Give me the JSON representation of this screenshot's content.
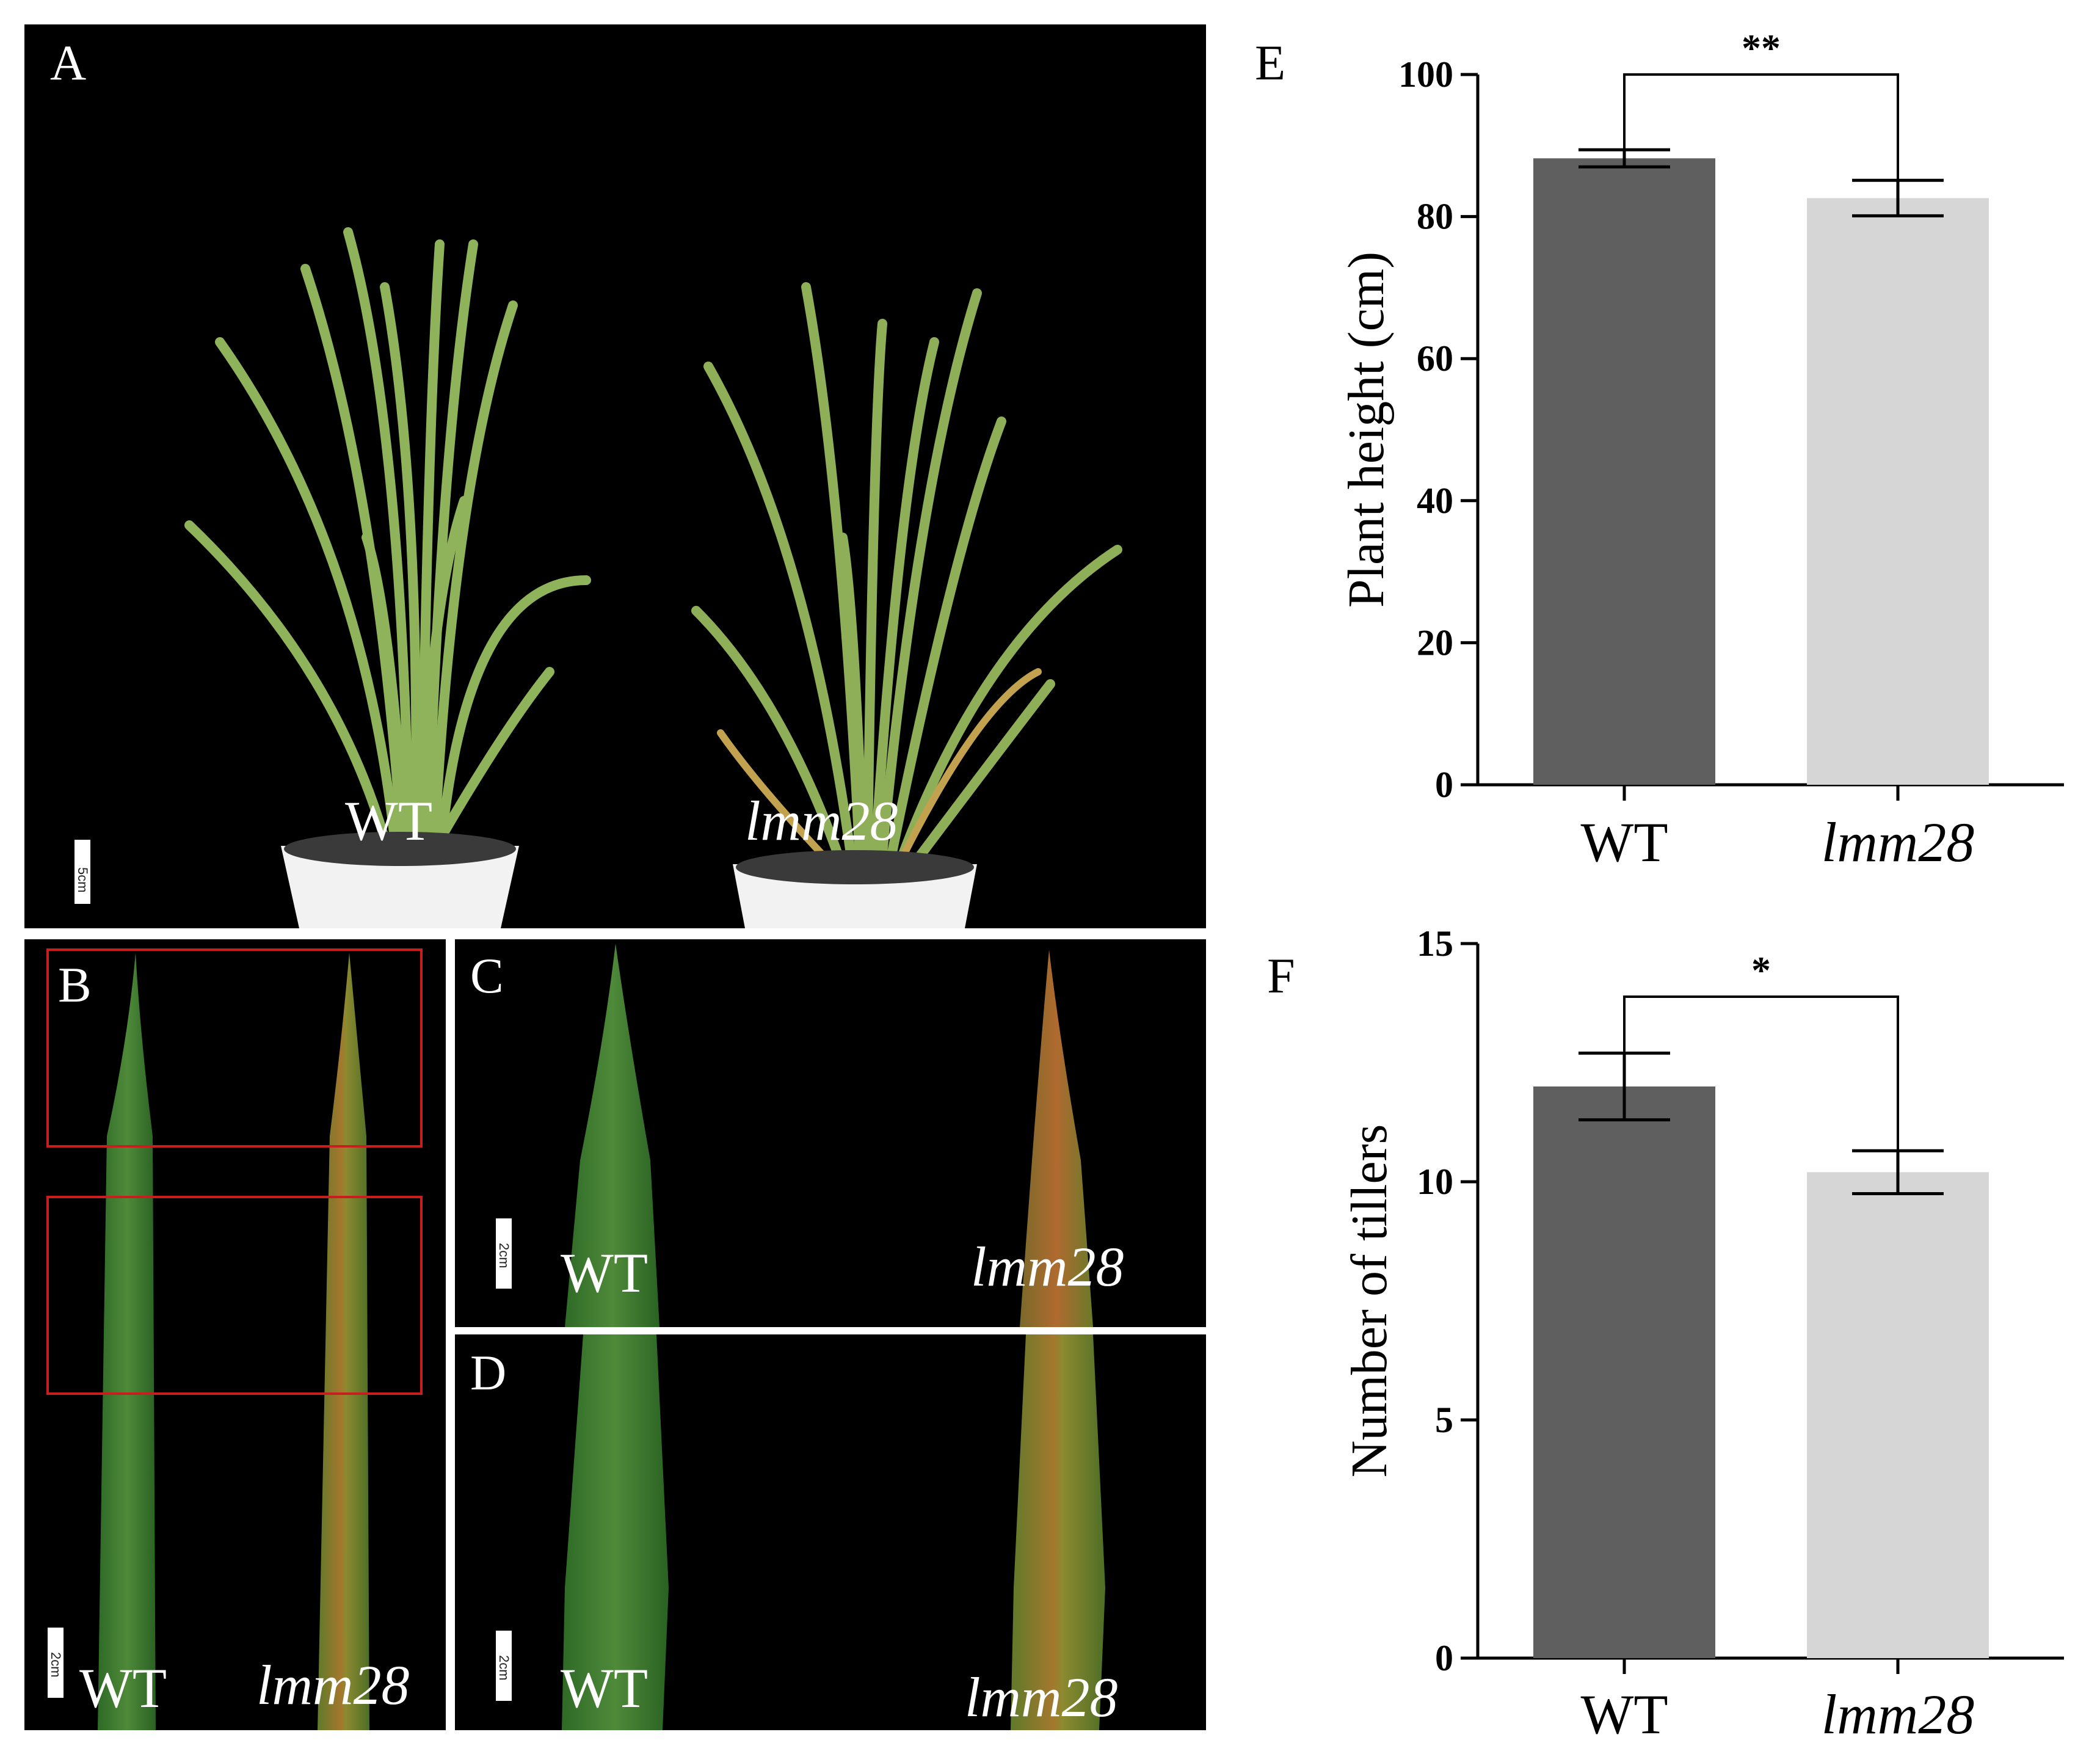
{
  "panels": {
    "A": {
      "letter": "A",
      "wt_label": "WT",
      "mut_label": "lmm28",
      "scale": "5cm"
    },
    "B": {
      "letter": "B",
      "wt_label": "WT",
      "mut_label": "lmm28",
      "scale": "2cm"
    },
    "C": {
      "letter": "C",
      "wt_label": "WT",
      "mut_label": "lmm28",
      "scale": "2cm"
    },
    "D": {
      "letter": "D",
      "wt_label": "WT",
      "mut_label": "lmm28",
      "scale": "2cm"
    }
  },
  "colors": {
    "photo_bg": "#000000",
    "leaf_green": "#3d7a2e",
    "plant_green": "#8fb35a",
    "lesion": "#a86a2a",
    "box_red": "#c81e1e",
    "bar_wt": "#5f5f5f",
    "bar_mut": "#d6d6d6"
  },
  "chart_data": [
    {
      "panel": "E",
      "type": "bar",
      "categories": [
        "WT",
        "lmm28"
      ],
      "values": [
        88.2,
        82.6
      ],
      "errors": [
        1.2,
        2.5
      ],
      "ylabel": "Plant  height (cm)",
      "xlabel": "",
      "ylim": [
        0,
        100
      ],
      "yticks": [
        "0",
        "20",
        "40",
        "60",
        "80",
        "100"
      ],
      "significance": "**"
    },
    {
      "panel": "F",
      "type": "bar",
      "categories": [
        "WT",
        "lmm28"
      ],
      "values": [
        12.0,
        10.2
      ],
      "errors": [
        0.7,
        0.45
      ],
      "ylabel": "Number of tillers",
      "xlabel": "",
      "ylim": [
        0,
        15
      ],
      "yticks": [
        "0",
        "5",
        "10",
        "15"
      ],
      "significance": "*"
    }
  ]
}
